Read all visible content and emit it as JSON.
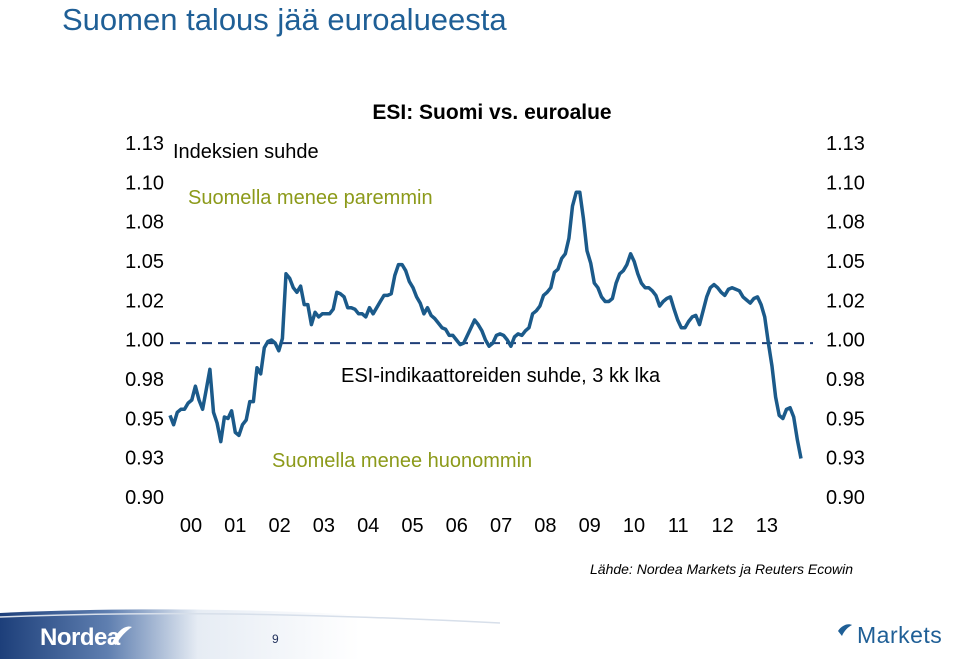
{
  "slide": {
    "title": "Suomen talous jää euroalueesta",
    "source": "Lähde: Nordea Markets ja Reuters Ecowin",
    "page_number": "9",
    "brand_left": "Nordea",
    "brand_right": "Markets"
  },
  "colors": {
    "title": "#1f5f96",
    "series": "#1b5a8a",
    "annotation_green": "#8c9a1a",
    "reference_line": "#1f3f78",
    "footer_dark": "#1d3f7a"
  },
  "chart_data": {
    "type": "line",
    "title": "ESI: Suomi vs. euroalue",
    "axis_label": "Indeksien suhde",
    "legend": "ESI-indikaattoreiden suhde, 3 kk lka",
    "annotations": [
      "Suomella menee paremmin",
      "Suomella menee huonommin"
    ],
    "ylim": [
      0.9,
      1.13
    ],
    "y_ticks": [
      "1.13",
      "1.10",
      "1.08",
      "1.05",
      "1.02",
      "1.00",
      "0.98",
      "0.95",
      "0.93",
      "0.90"
    ],
    "x_ticks": [
      "00",
      "01",
      "02",
      "03",
      "04",
      "05",
      "06",
      "07",
      "08",
      "09",
      "10",
      "11",
      "12",
      "13"
    ],
    "reference_value": 1.0,
    "x_start_year": 2000,
    "series": [
      {
        "values": [
          0.953,
          0.947,
          0.955,
          0.957,
          0.957,
          0.961,
          0.963,
          0.972,
          0.963,
          0.957,
          0.97,
          0.983,
          0.955,
          0.948,
          0.936,
          0.952,
          0.951,
          0.956,
          0.942,
          0.94,
          0.947,
          0.95,
          0.962,
          0.962,
          0.984,
          0.98,
          0.997,
          1.001,
          1.002,
          1.0,
          0.995,
          1.003,
          1.045,
          1.042,
          1.036,
          1.033,
          1.037,
          1.025,
          1.025,
          1.012,
          1.02,
          1.017,
          1.019,
          1.019,
          1.019,
          1.022,
          1.033,
          1.032,
          1.03,
          1.023,
          1.023,
          1.022,
          1.019,
          1.019,
          1.017,
          1.023,
          1.019,
          1.023,
          1.027,
          1.031,
          1.031,
          1.032,
          1.044,
          1.051,
          1.051,
          1.047,
          1.04,
          1.036,
          1.03,
          1.026,
          1.019,
          1.023,
          1.018,
          1.016,
          1.013,
          1.01,
          1.009,
          1.005,
          1.005,
          1.002,
          0.999,
          1.0,
          1.005,
          1.01,
          1.015,
          1.012,
          1.008,
          1.002,
          0.998,
          1.0,
          1.005,
          1.006,
          1.005,
          1.002,
          0.998,
          1.004,
          1.006,
          1.005,
          1.008,
          1.01,
          1.019,
          1.021,
          1.024,
          1.031,
          1.033,
          1.036,
          1.046,
          1.048,
          1.055,
          1.058,
          1.068,
          1.089,
          1.098,
          1.098,
          1.081,
          1.06,
          1.052,
          1.039,
          1.036,
          1.03,
          1.027,
          1.027,
          1.029,
          1.039,
          1.045,
          1.047,
          1.051,
          1.058,
          1.053,
          1.045,
          1.039,
          1.036,
          1.036,
          1.034,
          1.031,
          1.024,
          1.027,
          1.029,
          1.03,
          1.022,
          1.015,
          1.01,
          1.01,
          1.014,
          1.017,
          1.018,
          1.012,
          1.021,
          1.03,
          1.036,
          1.038,
          1.036,
          1.033,
          1.031,
          1.035,
          1.036,
          1.035,
          1.034,
          1.03,
          1.028,
          1.026,
          1.029,
          1.03,
          1.025,
          1.017,
          1.0,
          0.985,
          0.965,
          0.953,
          0.951,
          0.957,
          0.958,
          0.952,
          0.937,
          0.925
        ]
      }
    ]
  }
}
